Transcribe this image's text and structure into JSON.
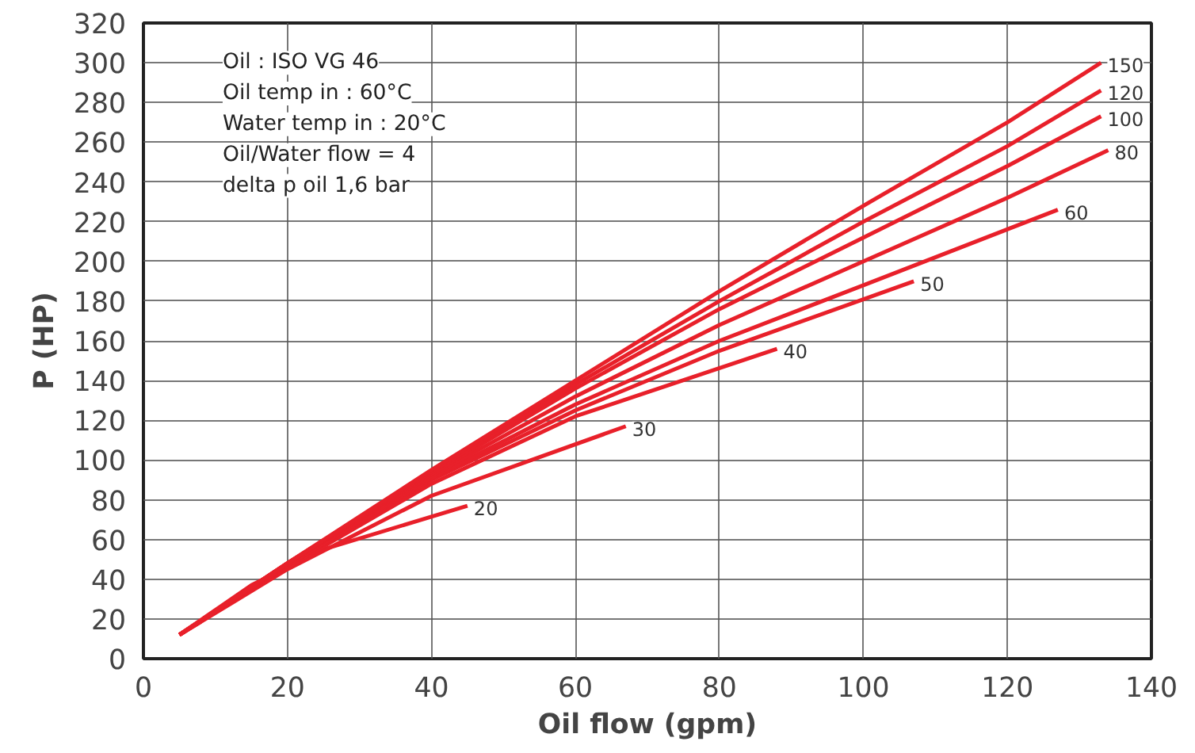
{
  "chart_data": {
    "type": "line",
    "xlabel": "Oil flow (gpm)",
    "ylabel": "P (HP)",
    "xlim": [
      0,
      140
    ],
    "xticks": [
      0,
      20,
      40,
      60,
      80,
      100,
      120,
      140
    ],
    "ylim": [
      0,
      320
    ],
    "yticks": [
      0,
      20,
      40,
      60,
      80,
      100,
      120,
      140,
      160,
      180,
      200,
      220,
      240,
      260,
      280,
      300,
      320
    ],
    "grid": true,
    "legend": false,
    "marker": "none",
    "line_style": "solid",
    "annotations": [
      "Oil : ISO VG 46",
      "Oil temp in : 60°C",
      "Water temp in : 20°C",
      "Oil/Water flow = 4",
      "delta p oil 1,6 bar"
    ],
    "series": [
      {
        "name": "20",
        "color": "#e8202a",
        "x": [
          5,
          15,
          25,
          45
        ],
        "values": [
          12,
          37,
          55,
          77
        ]
      },
      {
        "name": "30",
        "color": "#e8202a",
        "x": [
          5,
          20,
          40,
          67
        ],
        "values": [
          12,
          45,
          82,
          117
        ]
      },
      {
        "name": "40",
        "color": "#e8202a",
        "x": [
          5,
          20,
          40,
          60,
          88
        ],
        "values": [
          12,
          46,
          88,
          122,
          156
        ]
      },
      {
        "name": "50",
        "color": "#e8202a",
        "x": [
          5,
          20,
          40,
          60,
          80,
          107
        ],
        "values": [
          12,
          47,
          90,
          125,
          155,
          190
        ]
      },
      {
        "name": "60",
        "color": "#e8202a",
        "x": [
          5,
          20,
          40,
          60,
          80,
          100,
          127
        ],
        "values": [
          12,
          47,
          91,
          128,
          160,
          188,
          226
        ]
      },
      {
        "name": "80",
        "color": "#e8202a",
        "x": [
          5,
          20,
          40,
          60,
          80,
          100,
          120,
          134
        ],
        "values": [
          12,
          48,
          92,
          132,
          168,
          200,
          232,
          256
        ]
      },
      {
        "name": "100",
        "color": "#e8202a",
        "x": [
          5,
          20,
          40,
          60,
          80,
          100,
          120,
          133
        ],
        "values": [
          12,
          48,
          93,
          136,
          176,
          212,
          248,
          273
        ]
      },
      {
        "name": "120",
        "color": "#e8202a",
        "x": [
          5,
          20,
          40,
          60,
          80,
          100,
          120,
          133
        ],
        "values": [
          12,
          48,
          94,
          138,
          180,
          220,
          258,
          286
        ]
      },
      {
        "name": "150",
        "color": "#e8202a",
        "x": [
          5,
          20,
          40,
          60,
          80,
          100,
          120,
          133
        ],
        "values": [
          12,
          48,
          95,
          140,
          185,
          228,
          270,
          300
        ]
      }
    ]
  }
}
